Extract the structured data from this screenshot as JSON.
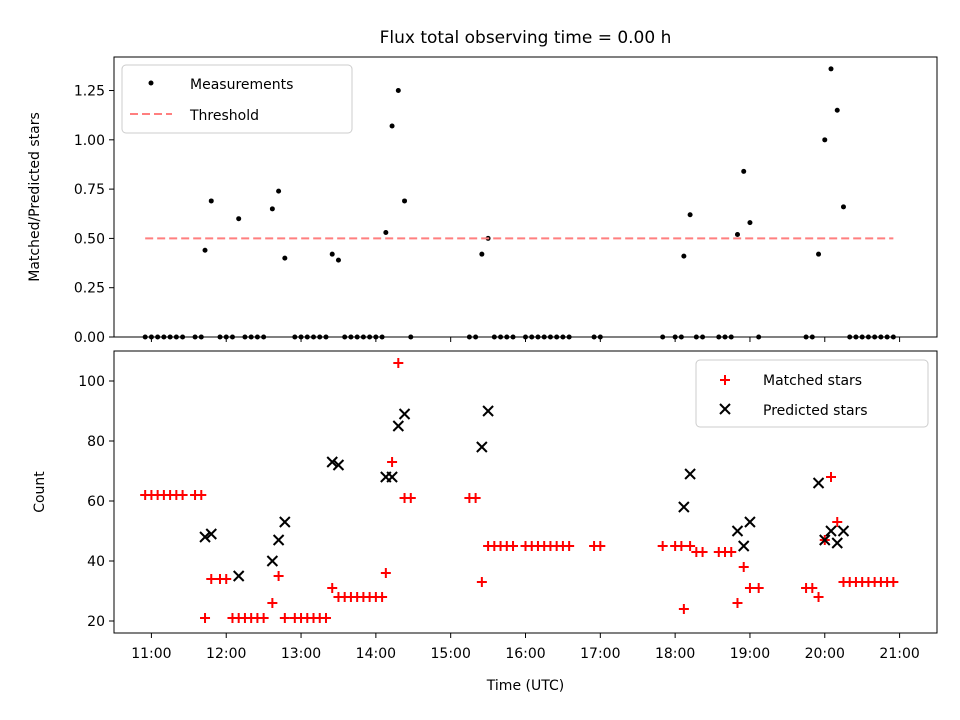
{
  "chart_data": [
    {
      "type": "scatter",
      "title": "Flux total observing time = 0.00 h",
      "xlabel": "",
      "ylabel": "Matched/Predicted stars",
      "xlim": [
        "10:30",
        "21:30"
      ],
      "ylim": [
        0,
        1.42
      ],
      "yticks": [
        {
          "value": 0,
          "label": "0.00"
        },
        {
          "value": 0.25,
          "label": "0.25"
        },
        {
          "value": 0.5,
          "label": "0.50"
        },
        {
          "value": 0.75,
          "label": "0.75"
        },
        {
          "value": 1.0,
          "label": "1.00"
        },
        {
          "value": 1.25,
          "label": "1.25"
        }
      ],
      "legend": {
        "placement": "top-left",
        "entries": [
          "Measurements",
          "Threshold"
        ]
      },
      "series": [
        {
          "name": "Measurements",
          "marker": "dot",
          "color": "#000000",
          "points": [
            [
              "10:55",
              0
            ],
            [
              "11:00",
              0
            ],
            [
              "11:05",
              0
            ],
            [
              "11:10",
              0
            ],
            [
              "11:15",
              0
            ],
            [
              "11:20",
              0
            ],
            [
              "11:25",
              0
            ],
            [
              "11:35",
              0
            ],
            [
              "11:40",
              0
            ],
            [
              "11:43",
              0.44
            ],
            [
              "11:48",
              0.69
            ],
            [
              "11:55",
              0
            ],
            [
              "12:00",
              0
            ],
            [
              "12:05",
              0
            ],
            [
              "12:10",
              0.6
            ],
            [
              "12:15",
              0
            ],
            [
              "12:20",
              0
            ],
            [
              "12:25",
              0
            ],
            [
              "12:30",
              0
            ],
            [
              "12:37",
              0.65
            ],
            [
              "12:42",
              0.74
            ],
            [
              "12:47",
              0.4
            ],
            [
              "12:55",
              0
            ],
            [
              "13:00",
              0
            ],
            [
              "13:05",
              0
            ],
            [
              "13:10",
              0
            ],
            [
              "13:15",
              0
            ],
            [
              "13:20",
              0
            ],
            [
              "13:25",
              0.42
            ],
            [
              "13:30",
              0.39
            ],
            [
              "13:35",
              0
            ],
            [
              "13:40",
              0
            ],
            [
              "13:45",
              0
            ],
            [
              "13:50",
              0
            ],
            [
              "13:55",
              0
            ],
            [
              "14:00",
              0
            ],
            [
              "14:05",
              0
            ],
            [
              "14:08",
              0.53
            ],
            [
              "14:13",
              1.07
            ],
            [
              "14:18",
              1.25
            ],
            [
              "14:23",
              0.69
            ],
            [
              "14:28",
              0
            ],
            [
              "15:15",
              0
            ],
            [
              "15:20",
              0
            ],
            [
              "15:25",
              0.42
            ],
            [
              "15:30",
              0.5
            ],
            [
              "15:35",
              0
            ],
            [
              "15:40",
              0
            ],
            [
              "15:45",
              0
            ],
            [
              "15:50",
              0
            ],
            [
              "16:00",
              0
            ],
            [
              "16:05",
              0
            ],
            [
              "16:10",
              0
            ],
            [
              "16:15",
              0
            ],
            [
              "16:20",
              0
            ],
            [
              "16:25",
              0
            ],
            [
              "16:30",
              0
            ],
            [
              "16:35",
              0
            ],
            [
              "16:55",
              0
            ],
            [
              "17:00",
              0
            ],
            [
              "17:50",
              0
            ],
            [
              "18:00",
              0
            ],
            [
              "18:05",
              0
            ],
            [
              "18:07",
              0.41
            ],
            [
              "18:12",
              0.62
            ],
            [
              "18:17",
              0
            ],
            [
              "18:22",
              0
            ],
            [
              "18:35",
              0
            ],
            [
              "18:40",
              0
            ],
            [
              "18:45",
              0
            ],
            [
              "18:50",
              0.52
            ],
            [
              "18:55",
              0.84
            ],
            [
              "19:00",
              0.58
            ],
            [
              "19:07",
              0
            ],
            [
              "19:45",
              0
            ],
            [
              "19:50",
              0
            ],
            [
              "19:55",
              0.42
            ],
            [
              "20:00",
              1.0
            ],
            [
              "20:05",
              1.36
            ],
            [
              "20:10",
              1.15
            ],
            [
              "20:15",
              0.66
            ],
            [
              "20:20",
              0
            ],
            [
              "20:25",
              0
            ],
            [
              "20:30",
              0
            ],
            [
              "20:35",
              0
            ],
            [
              "20:40",
              0
            ],
            [
              "20:45",
              0
            ],
            [
              "20:50",
              0
            ],
            [
              "20:55",
              0
            ]
          ]
        },
        {
          "name": "Threshold",
          "style": "dashed-line",
          "color": "#ff7f7f",
          "points": [
            [
              "10:55",
              0.5
            ],
            [
              "20:55",
              0.5
            ]
          ]
        }
      ]
    },
    {
      "type": "scatter",
      "title": "",
      "xlabel": "Time (UTC)",
      "ylabel": "Count",
      "xlim": [
        "10:30",
        "21:30"
      ],
      "ylim": [
        16,
        110
      ],
      "yticks": [
        {
          "value": 20,
          "label": "20"
        },
        {
          "value": 40,
          "label": "40"
        },
        {
          "value": 60,
          "label": "60"
        },
        {
          "value": 80,
          "label": "80"
        },
        {
          "value": 100,
          "label": "100"
        }
      ],
      "xticks": [
        "11:00",
        "12:00",
        "13:00",
        "14:00",
        "15:00",
        "16:00",
        "17:00",
        "18:00",
        "19:00",
        "20:00",
        "21:00"
      ],
      "legend": {
        "placement": "top-right",
        "entries": [
          "Matched stars",
          "Predicted stars"
        ]
      },
      "series": [
        {
          "name": "Matched stars",
          "marker": "plus",
          "color": "#ff0000",
          "points": [
            [
              "10:55",
              62
            ],
            [
              "11:00",
              62
            ],
            [
              "11:05",
              62
            ],
            [
              "11:10",
              62
            ],
            [
              "11:15",
              62
            ],
            [
              "11:20",
              62
            ],
            [
              "11:25",
              62
            ],
            [
              "11:35",
              62
            ],
            [
              "11:40",
              62
            ],
            [
              "11:43",
              21
            ],
            [
              "11:48",
              34
            ],
            [
              "11:55",
              34
            ],
            [
              "12:00",
              34
            ],
            [
              "12:05",
              21
            ],
            [
              "12:10",
              21
            ],
            [
              "12:15",
              21
            ],
            [
              "12:20",
              21
            ],
            [
              "12:25",
              21
            ],
            [
              "12:30",
              21
            ],
            [
              "12:37",
              26
            ],
            [
              "12:42",
              35
            ],
            [
              "12:47",
              21
            ],
            [
              "12:55",
              21
            ],
            [
              "13:00",
              21
            ],
            [
              "13:05",
              21
            ],
            [
              "13:10",
              21
            ],
            [
              "13:15",
              21
            ],
            [
              "13:20",
              21
            ],
            [
              "13:25",
              31
            ],
            [
              "13:30",
              28
            ],
            [
              "13:35",
              28
            ],
            [
              "13:40",
              28
            ],
            [
              "13:45",
              28
            ],
            [
              "13:50",
              28
            ],
            [
              "13:55",
              28
            ],
            [
              "14:00",
              28
            ],
            [
              "14:05",
              28
            ],
            [
              "14:08",
              36
            ],
            [
              "14:13",
              73
            ],
            [
              "14:18",
              106
            ],
            [
              "14:23",
              61
            ],
            [
              "14:28",
              61
            ],
            [
              "15:15",
              61
            ],
            [
              "15:20",
              61
            ],
            [
              "15:25",
              33
            ],
            [
              "15:30",
              45
            ],
            [
              "15:35",
              45
            ],
            [
              "15:40",
              45
            ],
            [
              "15:45",
              45
            ],
            [
              "15:50",
              45
            ],
            [
              "16:00",
              45
            ],
            [
              "16:05",
              45
            ],
            [
              "16:10",
              45
            ],
            [
              "16:15",
              45
            ],
            [
              "16:20",
              45
            ],
            [
              "16:25",
              45
            ],
            [
              "16:30",
              45
            ],
            [
              "16:35",
              45
            ],
            [
              "16:55",
              45
            ],
            [
              "17:00",
              45
            ],
            [
              "17:50",
              45
            ],
            [
              "18:00",
              45
            ],
            [
              "18:05",
              45
            ],
            [
              "18:07",
              24
            ],
            [
              "18:12",
              45
            ],
            [
              "18:17",
              43
            ],
            [
              "18:22",
              43
            ],
            [
              "18:35",
              43
            ],
            [
              "18:40",
              43
            ],
            [
              "18:45",
              43
            ],
            [
              "18:50",
              26
            ],
            [
              "18:55",
              38
            ],
            [
              "19:00",
              31
            ],
            [
              "19:07",
              31
            ],
            [
              "19:45",
              31
            ],
            [
              "19:50",
              31
            ],
            [
              "19:55",
              28
            ],
            [
              "20:00",
              47
            ],
            [
              "20:05",
              68
            ],
            [
              "20:10",
              53
            ],
            [
              "20:15",
              33
            ],
            [
              "20:20",
              33
            ],
            [
              "20:25",
              33
            ],
            [
              "20:30",
              33
            ],
            [
              "20:35",
              33
            ],
            [
              "20:40",
              33
            ],
            [
              "20:45",
              33
            ],
            [
              "20:50",
              33
            ],
            [
              "20:55",
              33
            ]
          ]
        },
        {
          "name": "Predicted stars",
          "marker": "x",
          "color": "#000000",
          "points": [
            [
              "11:43",
              48
            ],
            [
              "11:48",
              49
            ],
            [
              "12:10",
              35
            ],
            [
              "12:37",
              40
            ],
            [
              "12:42",
              47
            ],
            [
              "12:47",
              53
            ],
            [
              "13:25",
              73
            ],
            [
              "13:30",
              72
            ],
            [
              "14:08",
              68
            ],
            [
              "14:13",
              68
            ],
            [
              "14:18",
              85
            ],
            [
              "14:23",
              89
            ],
            [
              "15:25",
              78
            ],
            [
              "15:30",
              90
            ],
            [
              "18:07",
              58
            ],
            [
              "18:12",
              69
            ],
            [
              "18:50",
              50
            ],
            [
              "18:55",
              45
            ],
            [
              "19:00",
              53
            ],
            [
              "19:55",
              66
            ],
            [
              "20:00",
              47
            ],
            [
              "20:05",
              50
            ],
            [
              "20:10",
              46
            ],
            [
              "20:15",
              50
            ]
          ]
        }
      ]
    }
  ]
}
